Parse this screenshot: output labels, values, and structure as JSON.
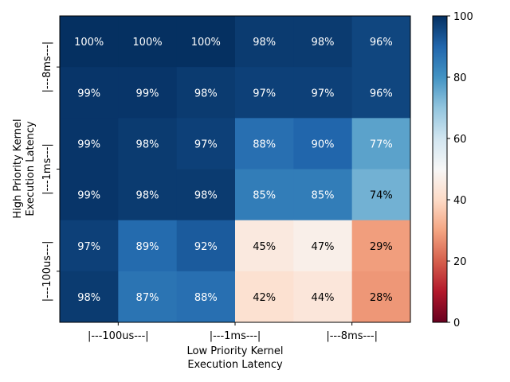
{
  "chart_data": {
    "type": "heatmap",
    "x_tick_labels": [
      "|---100us---|",
      "|---1ms---|",
      "|---8ms---|"
    ],
    "y_tick_labels": [
      "|---8ms---|",
      "|---1ms---|",
      "|---100us---|"
    ],
    "xlabel": [
      "Low Priority Kernel",
      "Execution Latency"
    ],
    "ylabel": [
      "High Priority Kernel",
      "Execution Latency"
    ],
    "rows": 6,
    "cols": 6,
    "values": [
      [
        100,
        100,
        100,
        98,
        98,
        96
      ],
      [
        99,
        99,
        98,
        97,
        97,
        96
      ],
      [
        99,
        98,
        97,
        88,
        90,
        77
      ],
      [
        99,
        98,
        98,
        85,
        85,
        74
      ],
      [
        97,
        89,
        92,
        45,
        47,
        29
      ],
      [
        98,
        87,
        88,
        42,
        44,
        28
      ]
    ],
    "value_suffix": "%",
    "colormap": "RdBu",
    "vmin": 0,
    "vmax": 100,
    "colorbar_ticks": [
      0,
      20,
      40,
      60,
      80,
      100
    ]
  }
}
